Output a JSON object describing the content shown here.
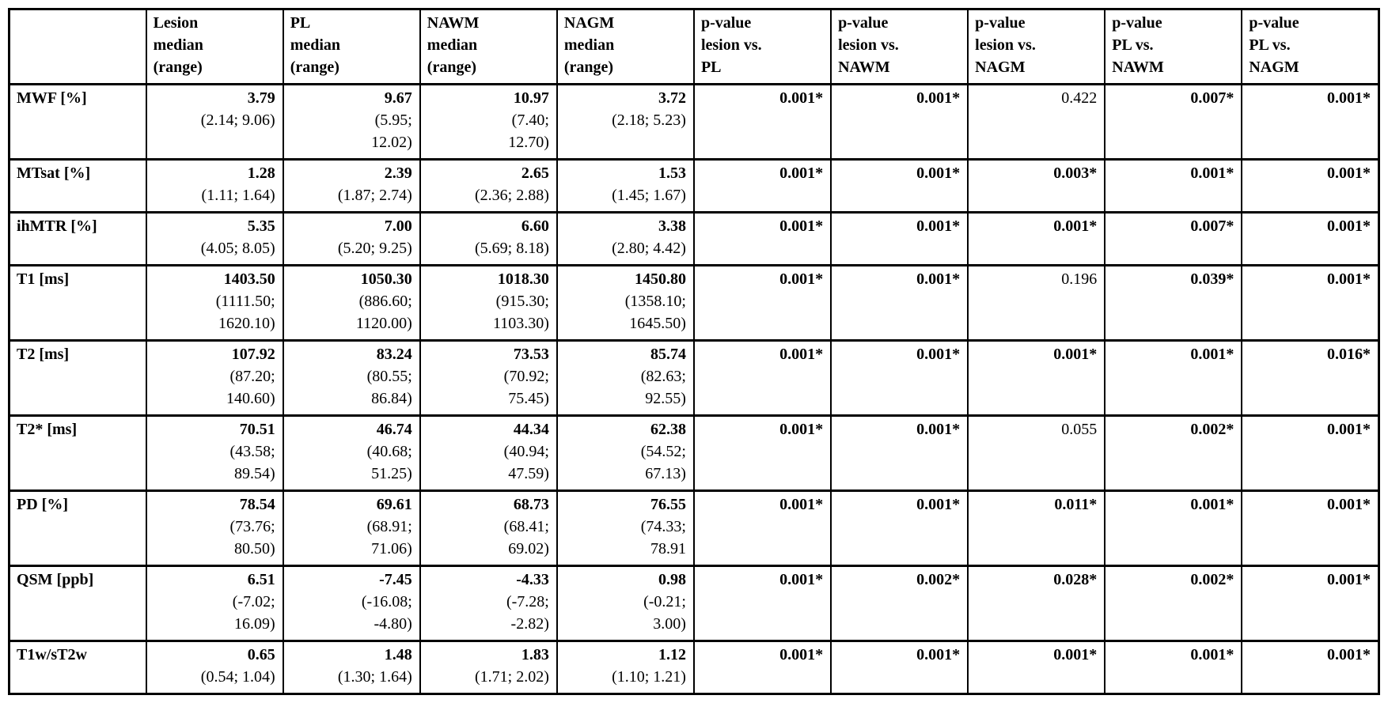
{
  "table": {
    "columns": [
      "",
      "Lesion\nmedian\n(range)",
      "PL\nmedian\n(range)",
      "NAWM\nmedian\n(range)",
      "NAGM\nmedian\n(range)",
      "p-value\nlesion vs.\nPL",
      "p-value\nlesion vs.\nNAWM",
      "p-value\nlesion vs.\nNAGM",
      "p-value\nPL vs.\nNAWM",
      "p-value\nPL vs.\nNAGM"
    ],
    "rows": [
      {
        "label": "MWF [%]",
        "values": [
          {
            "median": "3.79",
            "range": "(2.14; 9.06)"
          },
          {
            "median": "9.67",
            "range": "(5.95;\n12.02)"
          },
          {
            "median": "10.97",
            "range": "(7.40;\n12.70)"
          },
          {
            "median": "3.72",
            "range": "(2.18; 5.23)"
          }
        ],
        "p_values": [
          "0.001*",
          "0.001*",
          "0.422",
          "0.007*",
          "0.001*"
        ]
      },
      {
        "label": "MTsat [%]",
        "values": [
          {
            "median": "1.28",
            "range": "(1.11; 1.64)"
          },
          {
            "median": "2.39",
            "range": "(1.87; 2.74)"
          },
          {
            "median": "2.65",
            "range": "(2.36; 2.88)"
          },
          {
            "median": "1.53",
            "range": "(1.45; 1.67)"
          }
        ],
        "p_values": [
          "0.001*",
          "0.001*",
          "0.003*",
          "0.001*",
          "0.001*"
        ]
      },
      {
        "label": "ihMTR [%]",
        "values": [
          {
            "median": "5.35",
            "range": "(4.05; 8.05)"
          },
          {
            "median": "7.00",
            "range": "(5.20; 9.25)"
          },
          {
            "median": "6.60",
            "range": "(5.69; 8.18)"
          },
          {
            "median": "3.38",
            "range": "(2.80; 4.42)"
          }
        ],
        "p_values": [
          "0.001*",
          "0.001*",
          "0.001*",
          "0.007*",
          "0.001*"
        ]
      },
      {
        "label": "T1 [ms]",
        "values": [
          {
            "median": "1403.50",
            "range": "(1111.50;\n1620.10)"
          },
          {
            "median": "1050.30",
            "range": "(886.60;\n1120.00)"
          },
          {
            "median": "1018.30",
            "range": "(915.30;\n1103.30)"
          },
          {
            "median": "1450.80",
            "range": "(1358.10;\n1645.50)"
          }
        ],
        "p_values": [
          "0.001*",
          "0.001*",
          "0.196",
          "0.039*",
          "0.001*"
        ]
      },
      {
        "label": "T2 [ms]",
        "values": [
          {
            "median": "107.92",
            "range": "(87.20;\n140.60)"
          },
          {
            "median": "83.24",
            "range": "(80.55;\n86.84)"
          },
          {
            "median": "73.53",
            "range": "(70.92;\n75.45)"
          },
          {
            "median": "85.74",
            "range": "(82.63;\n92.55)"
          }
        ],
        "p_values": [
          "0.001*",
          "0.001*",
          "0.001*",
          "0.001*",
          "0.016*"
        ]
      },
      {
        "label": "T2* [ms]",
        "values": [
          {
            "median": "70.51",
            "range": "(43.58;\n89.54)"
          },
          {
            "median": "46.74",
            "range": "(40.68;\n51.25)"
          },
          {
            "median": "44.34",
            "range": "(40.94;\n47.59)"
          },
          {
            "median": "62.38",
            "range": "(54.52;\n67.13)"
          }
        ],
        "p_values": [
          "0.001*",
          "0.001*",
          "0.055",
          "0.002*",
          "0.001*"
        ]
      },
      {
        "label": "PD [%]",
        "values": [
          {
            "median": "78.54",
            "range": "(73.76;\n80.50)"
          },
          {
            "median": "69.61",
            "range": "(68.91;\n71.06)"
          },
          {
            "median": "68.73",
            "range": "(68.41;\n69.02)"
          },
          {
            "median": "76.55",
            "range": "(74.33;\n78.91"
          }
        ],
        "p_values": [
          "0.001*",
          "0.001*",
          "0.011*",
          "0.001*",
          "0.001*"
        ]
      },
      {
        "label": "QSM [ppb]",
        "values": [
          {
            "median": "6.51",
            "range": "(-7.02;\n16.09)"
          },
          {
            "median": "-7.45",
            "range": "(-16.08;\n-4.80)"
          },
          {
            "median": "-4.33",
            "range": "(-7.28;\n-2.82)"
          },
          {
            "median": "0.98",
            "range": "(-0.21;\n3.00)"
          }
        ],
        "p_values": [
          "0.001*",
          "0.002*",
          "0.028*",
          "0.002*",
          "0.001*"
        ]
      },
      {
        "label": "T1w/sT2w",
        "values": [
          {
            "median": "0.65",
            "range": "(0.54; 1.04)"
          },
          {
            "median": "1.48",
            "range": "(1.30; 1.64)"
          },
          {
            "median": "1.83",
            "range": "(1.71; 2.02)"
          },
          {
            "median": "1.12",
            "range": "(1.10; 1.21)"
          }
        ],
        "p_values": [
          "0.001*",
          "0.001*",
          "0.001*",
          "0.001*",
          "0.001*"
        ]
      }
    ]
  }
}
